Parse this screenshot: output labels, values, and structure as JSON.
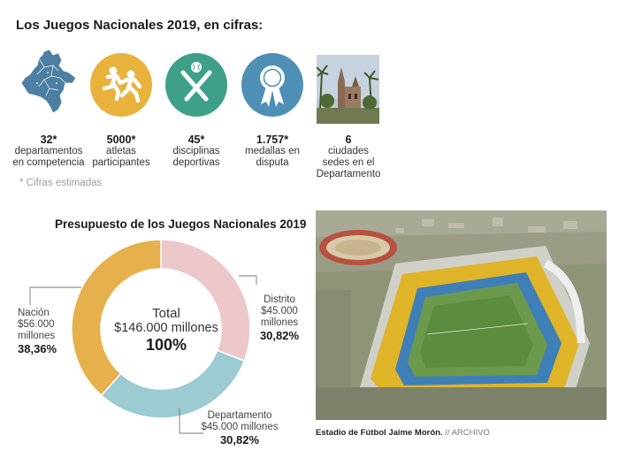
{
  "header": {
    "title": "Los Juegos Nacionales 2019, en cifras:"
  },
  "stats": [
    {
      "number": "32*",
      "label_1": "departamentos",
      "label_2": "en competencia",
      "icon": "colombia-map-icon"
    },
    {
      "number": "5000*",
      "label_1": "atletas",
      "label_2": "participantes",
      "icon": "athletes-icon",
      "color": "#e8b23c"
    },
    {
      "number": "45*",
      "label_1": "disciplinas",
      "label_2": "deportivas",
      "icon": "baseball-icon",
      "color": "#3fa08a"
    },
    {
      "number": "1.757*",
      "label_1": "medallas en",
      "label_2": "disputa",
      "icon": "medal-ribbon-icon",
      "color": "#4e8fb5"
    },
    {
      "number": "6",
      "label_1": "ciudades",
      "label_2": "sedes en el",
      "label_3": "Departamento",
      "icon": "cathedral-photo"
    }
  ],
  "footnote": "* Cifras estimadas",
  "chart_title": "Presupuesto de los Juegos Nacionales 2019",
  "chart_data": {
    "type": "pie",
    "title": "Presupuesto de los Juegos Nacionales 2019",
    "total": {
      "label": "Total",
      "amount": "$146.000 millones",
      "percent": "100%"
    },
    "slices": [
      {
        "name": "Distrito",
        "amount": "$45.000",
        "unit": "millones",
        "percent_label": "30,82%",
        "value": 30.82,
        "color": "#ecc8cb"
      },
      {
        "name": "Departamento",
        "amount": "$45.000 millones",
        "unit": "",
        "percent_label": "30,82%",
        "value": 30.82,
        "color": "#9ccbd2"
      },
      {
        "name": "Nación",
        "amount": "$56.000",
        "unit": "millones",
        "percent_label": "38,36%",
        "value": 38.36,
        "color": "#e6b04c"
      }
    ]
  },
  "photo": {
    "caption": "Estadio de Fútbol Jaime Morón.",
    "credit": " // ARCHIVO"
  }
}
